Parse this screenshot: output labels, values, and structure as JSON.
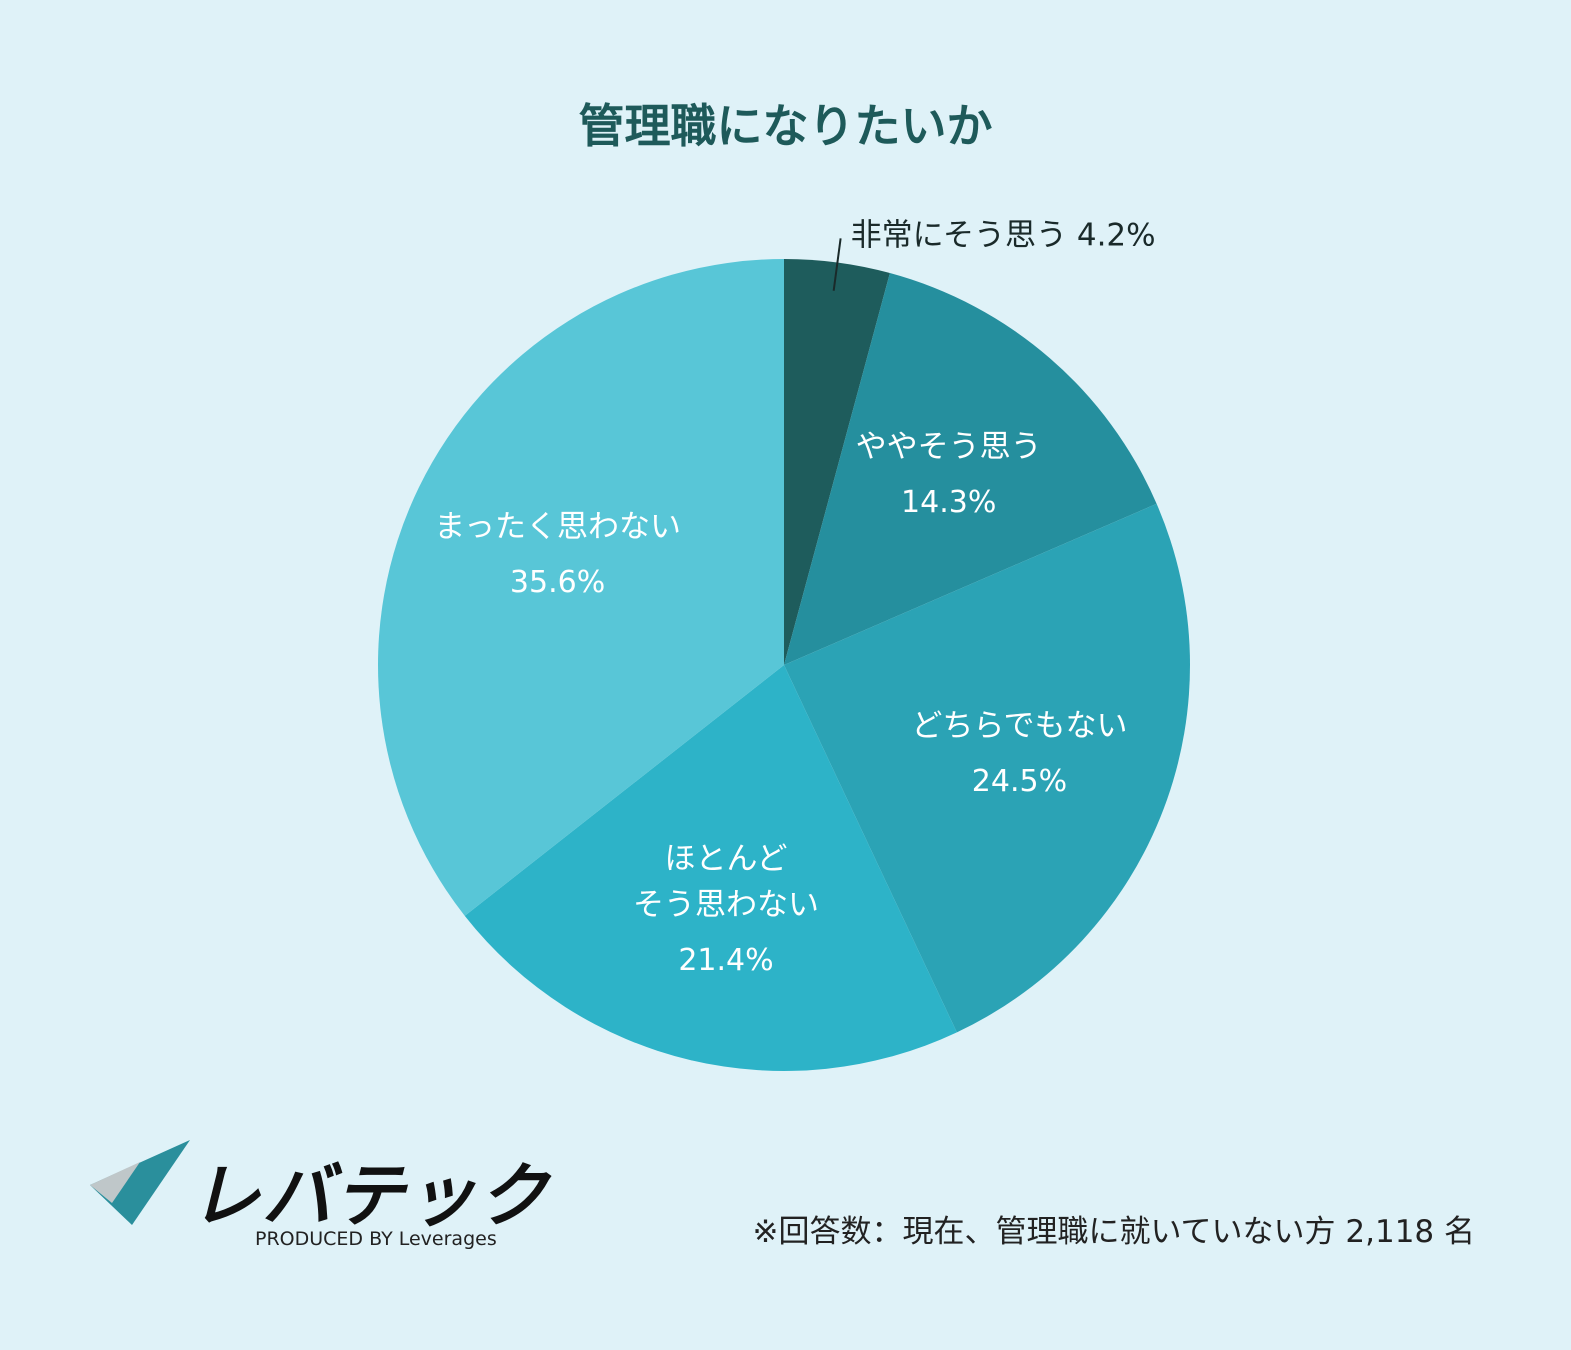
{
  "chart_data": {
    "type": "pie",
    "title": "管理職になりたいか",
    "categories": [
      "非常にそう思う",
      "ややそう思う",
      "どちらでもない",
      "ほとんど\nそう思わない",
      "まったく思わない"
    ],
    "values": [
      4.2,
      14.3,
      24.5,
      21.4,
      35.6
    ],
    "value_labels": [
      "4.2%",
      "14.3%",
      "24.5%",
      "21.4%",
      "35.6%"
    ],
    "colors": [
      "#1e5c5c",
      "#258f9e",
      "#2ba3b5",
      "#2db3c8",
      "#58c6d7"
    ],
    "note": "※回答数：現在、管理職に就いていない方 2,118 名"
  },
  "logo": {
    "name": "レバテック",
    "tagline": "PRODUCED BY Leverages"
  }
}
